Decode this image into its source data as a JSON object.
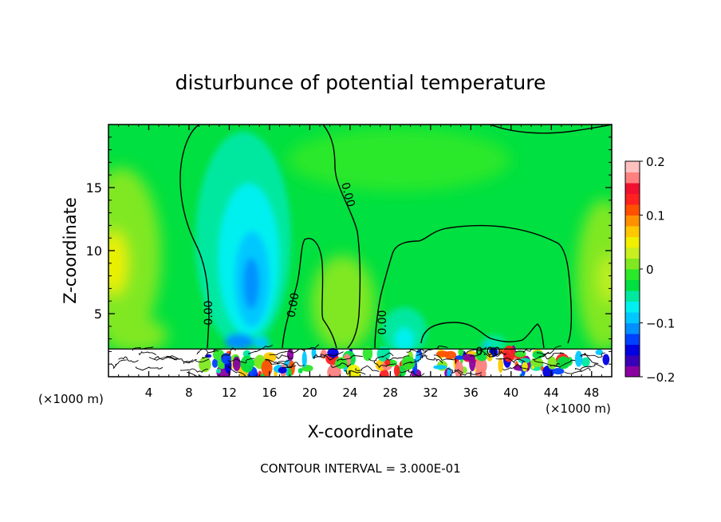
{
  "chart_data": {
    "type": "heatmap",
    "title": "disturbunce of potential temperature",
    "xlabel": "X-coordinate",
    "ylabel": "Z-coordinate",
    "x_unit_left": "(×1000 m)",
    "x_unit_right": "(×1000 m)",
    "xlim": [
      0,
      50
    ],
    "ylim": [
      0,
      20
    ],
    "x_ticks": [
      4,
      8,
      12,
      16,
      20,
      24,
      28,
      32,
      36,
      40,
      44,
      48
    ],
    "x_tick_labels": [
      "4",
      "8",
      "12",
      "16",
      "20",
      "24",
      "28",
      "32",
      "36",
      "40",
      "44",
      "48"
    ],
    "y_ticks": [
      5,
      10,
      15
    ],
    "y_tick_labels": [
      "5",
      "10",
      "15"
    ],
    "colorbar": {
      "range": [
        -0.2,
        0.2
      ],
      "tick_values": [
        0.2,
        0.1,
        0,
        -0.1,
        -0.2
      ],
      "tick_labels": [
        "0.2",
        "0.1",
        "0",
        "−0.1",
        "−0.2"
      ],
      "colors": [
        "#8b00a0",
        "#3a00b8",
        "#0000e0",
        "#0040ff",
        "#0090ff",
        "#00c8ff",
        "#00f0f0",
        "#00e8a0",
        "#00e040",
        "#2ae82a",
        "#80e820",
        "#c8f020",
        "#f0f000",
        "#ffc800",
        "#ff9000",
        "#ff5000",
        "#ff2020",
        "#f01030",
        "#ff8080",
        "#ffc0c0"
      ]
    },
    "contour_labels": [
      "0.00",
      "0.00",
      "0.00",
      "0.00",
      "0.00"
    ],
    "contour_interval_text": "CONTOUR INTERVAL = 3.000E-01",
    "features": [
      {
        "name": "cold plume",
        "x_center": 14,
        "z_top": 16,
        "min_value": -0.12
      },
      {
        "name": "weak cold pocket",
        "x_center": 29.5,
        "z_top": 4,
        "min_value": -0.05
      },
      {
        "name": "warm margin left",
        "x_center": 1,
        "z_top": 14,
        "max_value": 0.06
      },
      {
        "name": "warm margin right",
        "x_center": 49,
        "z_top": 11,
        "max_value": 0.05
      },
      {
        "name": "turbulent boundary layer",
        "z_range": [
          0,
          2.2
        ],
        "value_range": [
          -0.2,
          0.2
        ]
      }
    ]
  }
}
